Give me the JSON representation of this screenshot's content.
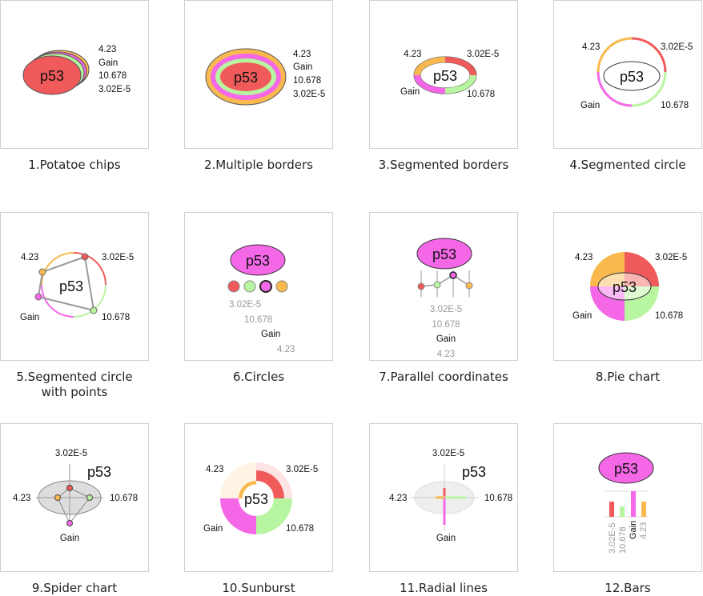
{
  "node_label": "p53",
  "values": {
    "a": "4.23",
    "b": "Gain",
    "c": "10.678",
    "d": "3.02E-5"
  },
  "colors": {
    "red": "#f15a5a",
    "green": "#b8f5a0",
    "magenta": "#f468e8",
    "orange": "#f9b94e",
    "grey": "#9a9a9a"
  },
  "panels": [
    {
      "caption": "1.Potatoe chips"
    },
    {
      "caption": "2.Multiple borders"
    },
    {
      "caption": "3.Segmented borders"
    },
    {
      "caption": "4.Segmented circle"
    },
    {
      "caption": "5.Segmented circle",
      "caption2": "with points"
    },
    {
      "caption": "6.Circles"
    },
    {
      "caption": "7.Parallel coordinates"
    },
    {
      "caption": "8.Pie chart"
    },
    {
      "caption": "9.Spider chart"
    },
    {
      "caption": "10.Sunburst"
    },
    {
      "caption": "11.Radial lines"
    },
    {
      "caption": "12.Bars"
    }
  ]
}
